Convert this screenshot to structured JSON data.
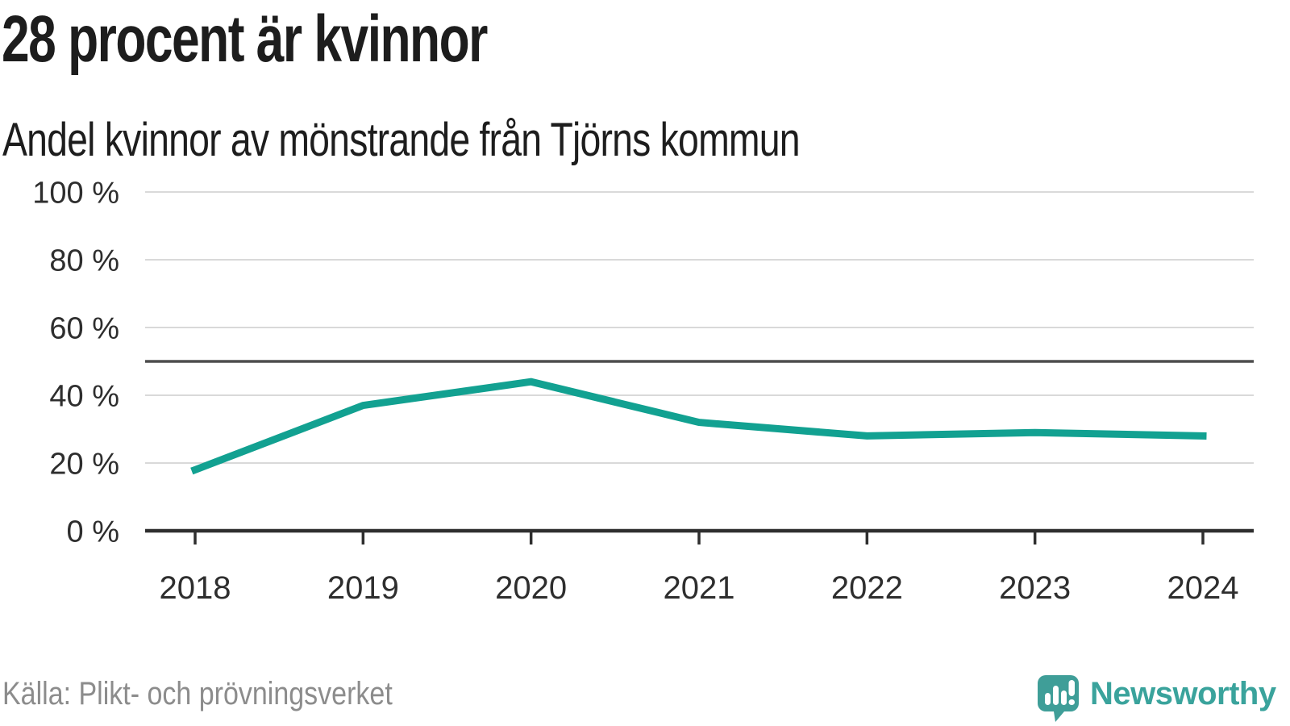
{
  "header": {
    "title": "28 procent är kvinnor",
    "subtitle": "Andel kvinnor av mönstrande från Tjörns kommun"
  },
  "chart_data": {
    "type": "line",
    "title": "28 procent är kvinnor",
    "subtitle": "Andel kvinnor av mönstrande från Tjörns kommun",
    "x": [
      "2018",
      "2019",
      "2020",
      "2021",
      "2022",
      "2023",
      "2024"
    ],
    "series": [
      {
        "name": "Andel kvinnor av mönstrande",
        "values": [
          18,
          37,
          44,
          32,
          28,
          29,
          28
        ]
      }
    ],
    "unit": "%",
    "ylim": [
      0,
      100
    ],
    "yticks": [
      0,
      20,
      40,
      60,
      80,
      100
    ],
    "ytick_suffix": " %",
    "reference_line": 50,
    "grid": "horizontal",
    "legend": "none",
    "line_color": "#12a191",
    "axis_color": "#2e2e2e",
    "tick_label_color": "#2e2e2e",
    "gridline_color": "#d9d9d9",
    "reference_line_color": "#4d4d4d"
  },
  "footer": {
    "source": "Källa: Plikt- och prövningsverket",
    "logo": {
      "wordmark": "Newsworthy",
      "icon": "newsworthy-bubble-chart-icon",
      "color": "#3aa39c"
    }
  }
}
